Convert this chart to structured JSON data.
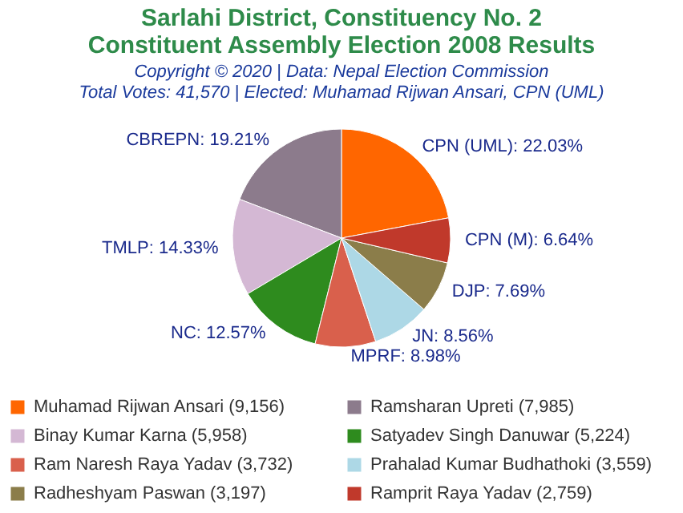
{
  "chart_data": {
    "type": "pie",
    "title": "Sarlahi District, Constituency No. 2\nConstituent Assembly Election 2008 Results",
    "subtitle": "Copyright © 2020 | Data: Nepal Election Commission\nTotal Votes: 41,570 | Elected: Muhamad Rijwan Ansari, CPN (UML)",
    "categories": [
      "Muhamad Rijwan Ansari (9,156)",
      "Ramsharan Upreti (7,985)",
      "Binay Kumar Karna (5,958)",
      "Satyadev Singh Danuwar (5,224)",
      "Ram Naresh Raya Yadav (3,732)",
      "Prahalad Kumar Budhathoki (3,559)",
      "Radheshyam Paswan (3,197)",
      "Ramprit Raya Yadav (2,759)"
    ],
    "values": [
      22.03,
      19.21,
      14.33,
      12.57,
      8.98,
      8.56,
      7.69,
      6.64
    ],
    "value_labels": [
      "CPN (UML): 22.03%",
      "CBREPN: 19.21%",
      "TMLP: 14.33%",
      "NC: 12.57%",
      "MPRF: 8.98%",
      "JN: 8.56%",
      "DJP: 7.69%",
      "CPN (M): 6.64%"
    ],
    "colors": [
      "#ff6600",
      "#8c7b8c",
      "#d4b8d4",
      "#2e8b1e",
      "#d9604c",
      "#add8e6",
      "#8b7d4a",
      "#c0392b"
    ],
    "legend": "bottom"
  }
}
